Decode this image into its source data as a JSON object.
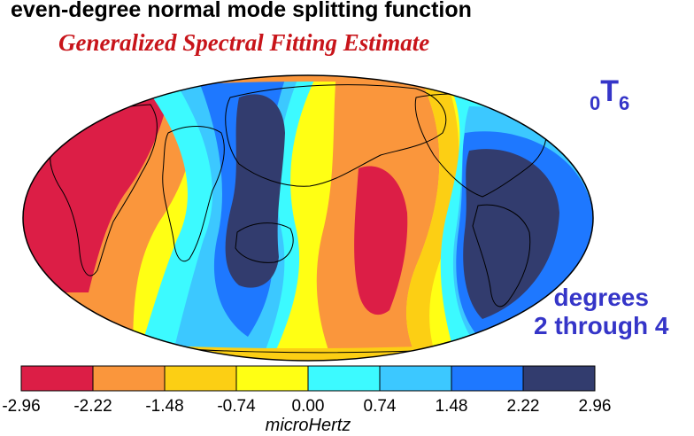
{
  "title": "even-degree normal mode splitting function",
  "subtitle": "Generalized Spectral Fitting Estimate",
  "mode": {
    "overtone": "0",
    "type": "T",
    "degree": "6"
  },
  "degree_range": {
    "line1": "degrees",
    "line2": "2 through 4"
  },
  "projection": "Mollweide (global)",
  "colorbar": {
    "unit": "microHertz",
    "ticks": [
      "-2.96",
      "-2.22",
      "-1.48",
      "-0.74",
      "0.00",
      "0.74",
      "1.48",
      "2.22",
      "2.96"
    ],
    "colors": [
      "#dc1e46",
      "#fa963c",
      "#fccf14",
      "#ffff14",
      "#3cfaff",
      "#3cc8ff",
      "#1e78ff",
      "#323c6e"
    ]
  }
}
